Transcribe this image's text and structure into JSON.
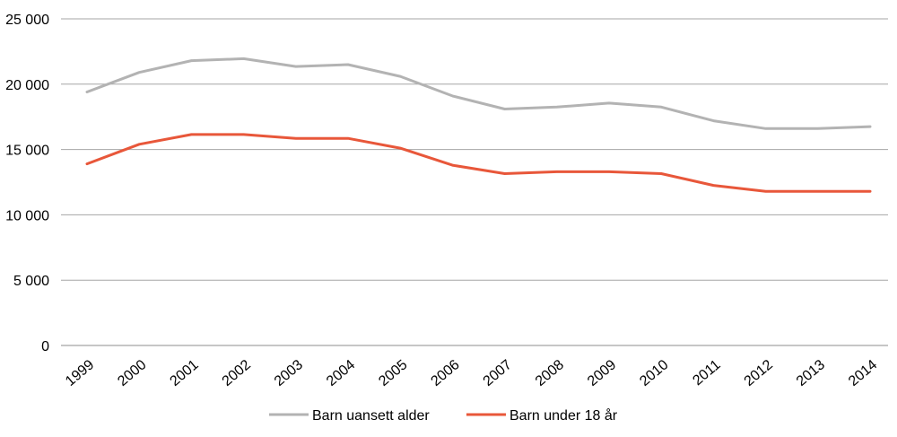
{
  "chart_data": {
    "type": "line",
    "title": "",
    "xlabel": "",
    "ylabel": "",
    "ylim": [
      0,
      25000
    ],
    "y_ticks": [
      0,
      5000,
      10000,
      15000,
      20000,
      25000
    ],
    "y_tick_labels": [
      "0",
      "5 000",
      "10 000",
      "15 000",
      "20 000",
      "25 000"
    ],
    "grid": true,
    "legend_position": "bottom",
    "x": [
      "1999",
      "2000",
      "2001",
      "2002",
      "2003",
      "2004",
      "2005",
      "2006",
      "2007",
      "2008",
      "2009",
      "2010",
      "2011",
      "2012",
      "2013",
      "2014"
    ],
    "series": [
      {
        "name": "Barn uansett alder",
        "color": "#b3b3b3",
        "values": [
          19400,
          20900,
          21800,
          21950,
          21350,
          21500,
          20600,
          19100,
          18100,
          18250,
          18550,
          18250,
          17200,
          16600,
          16600,
          16750
        ]
      },
      {
        "name": "Barn under 18 år",
        "color": "#e8573a",
        "values": [
          13900,
          15400,
          16150,
          16150,
          15850,
          15850,
          15100,
          13800,
          13150,
          13300,
          13300,
          13150,
          12250,
          11800,
          11800,
          11800
        ]
      }
    ]
  }
}
